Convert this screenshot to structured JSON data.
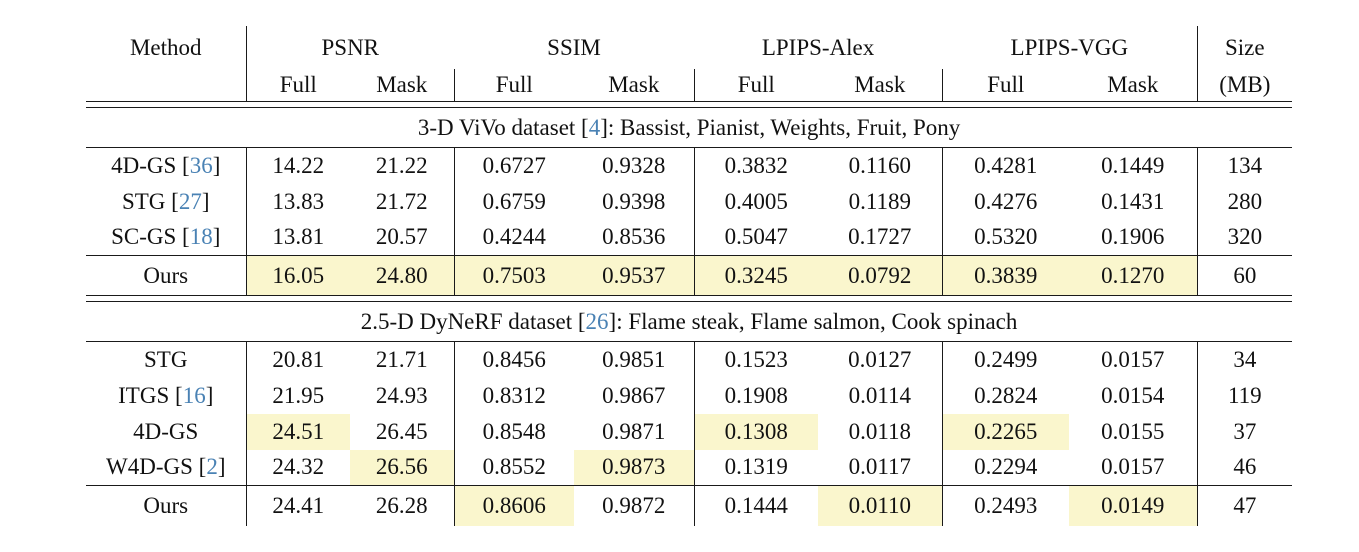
{
  "colors": {
    "highlight": "#faf6cd",
    "citation": "#4a82b4",
    "rule": "#1a1a1a"
  },
  "header": {
    "method": "Method",
    "groups": [
      {
        "label": "PSNR"
      },
      {
        "label": "SSIM"
      },
      {
        "label": "LPIPS-Alex"
      },
      {
        "label": "LPIPS-VGG"
      }
    ],
    "sub_full": "Full",
    "sub_mask": "Mask",
    "size": "Size",
    "size_unit": "(MB)"
  },
  "columns": [
    "psnr-full",
    "psnr-mask",
    "ssim-full",
    "ssim-mask",
    "lpips-alex-full",
    "lpips-alex-mask",
    "lpips-vgg-full",
    "lpips-vgg-mask",
    "size-mb"
  ],
  "sections": [
    {
      "title": {
        "prefix": "3-D ViVo dataset [",
        "cite": "4",
        "suffix": "]: Bassist, Pianist, Weights, Fruit, Pony"
      },
      "rows": [
        {
          "method": "4D-GS",
          "cite": "36",
          "values": [
            "14.22",
            "21.22",
            "0.6727",
            "0.9328",
            "0.3832",
            "0.1160",
            "0.4281",
            "0.1449",
            "134"
          ],
          "highlights": [],
          "rule_above": false
        },
        {
          "method": "STG",
          "cite": "27",
          "values": [
            "13.83",
            "21.72",
            "0.6759",
            "0.9398",
            "0.4005",
            "0.1189",
            "0.4276",
            "0.1431",
            "280"
          ],
          "highlights": [],
          "rule_above": false
        },
        {
          "method": "SC-GS",
          "cite": "18",
          "values": [
            "13.81",
            "20.57",
            "0.4244",
            "0.8536",
            "0.5047",
            "0.1727",
            "0.5320",
            "0.1906",
            "320"
          ],
          "highlights": [],
          "rule_above": false
        },
        {
          "method": "Ours",
          "cite": null,
          "values": [
            "16.05",
            "24.80",
            "0.7503",
            "0.9537",
            "0.3245",
            "0.0792",
            "0.3839",
            "0.1270",
            "60"
          ],
          "highlights": [
            0,
            1,
            2,
            3,
            4,
            5,
            6,
            7
          ],
          "rule_above": true
        }
      ]
    },
    {
      "title": {
        "prefix": "2.5-D DyNeRF dataset [",
        "cite": "26",
        "suffix": "]: Flame steak, Flame salmon, Cook spinach"
      },
      "rows": [
        {
          "method": "STG",
          "cite": null,
          "values": [
            "20.81",
            "21.71",
            "0.8456",
            "0.9851",
            "0.1523",
            "0.0127",
            "0.2499",
            "0.0157",
            "34"
          ],
          "highlights": [],
          "rule_above": false
        },
        {
          "method": "ITGS",
          "cite": "16",
          "values": [
            "21.95",
            "24.93",
            "0.8312",
            "0.9867",
            "0.1908",
            "0.0114",
            "0.2824",
            "0.0154",
            "119"
          ],
          "highlights": [],
          "rule_above": false
        },
        {
          "method": "4D-GS",
          "cite": null,
          "values": [
            "24.51",
            "26.45",
            "0.8548",
            "0.9871",
            "0.1308",
            "0.0118",
            "0.2265",
            "0.0155",
            "37"
          ],
          "highlights": [
            0,
            4,
            6
          ],
          "rule_above": false
        },
        {
          "method": "W4D-GS",
          "cite": "2",
          "values": [
            "24.32",
            "26.56",
            "0.8552",
            "0.9873",
            "0.1319",
            "0.0117",
            "0.2294",
            "0.0157",
            "46"
          ],
          "highlights": [
            1,
            3
          ],
          "rule_above": false
        },
        {
          "method": "Ours",
          "cite": null,
          "values": [
            "24.41",
            "26.28",
            "0.8606",
            "0.9872",
            "0.1444",
            "0.0110",
            "0.2493",
            "0.0149",
            "47"
          ],
          "highlights": [
            2,
            5,
            7
          ],
          "rule_above": true
        }
      ]
    }
  ],
  "chart_data": {
    "type": "table",
    "title": "Quantitative comparison on 3-D ViVo and 2.5-D DyNeRF datasets",
    "column_groups": [
      "PSNR",
      "SSIM",
      "LPIPS-Alex",
      "LPIPS-VGG",
      "Size (MB)"
    ],
    "subcolumns": [
      "Full",
      "Mask"
    ],
    "vivo_rows": [
      [
        "4D-GS [36]",
        14.22,
        21.22,
        0.6727,
        0.9328,
        0.3832,
        0.116,
        0.4281,
        0.1449,
        134
      ],
      [
        "STG [27]",
        13.83,
        21.72,
        0.6759,
        0.9398,
        0.4005,
        0.1189,
        0.4276,
        0.1431,
        280
      ],
      [
        "SC-GS [18]",
        13.81,
        20.57,
        0.4244,
        0.8536,
        0.5047,
        0.1727,
        0.532,
        0.1906,
        320
      ],
      [
        "Ours",
        16.05,
        24.8,
        0.7503,
        0.9537,
        0.3245,
        0.0792,
        0.3839,
        0.127,
        60
      ]
    ],
    "dynerf_rows": [
      [
        "STG",
        20.81,
        21.71,
        0.8456,
        0.9851,
        0.1523,
        0.0127,
        0.2499,
        0.0157,
        34
      ],
      [
        "ITGS [16]",
        21.95,
        24.93,
        0.8312,
        0.9867,
        0.1908,
        0.0114,
        0.2824,
        0.0154,
        119
      ],
      [
        "4D-GS",
        24.51,
        26.45,
        0.8548,
        0.9871,
        0.1308,
        0.0118,
        0.2265,
        0.0155,
        37
      ],
      [
        "W4D-GS [2]",
        24.32,
        26.56,
        0.8552,
        0.9873,
        0.1319,
        0.0117,
        0.2294,
        0.0157,
        46
      ],
      [
        "Ours",
        24.41,
        26.28,
        0.8606,
        0.9872,
        0.1444,
        0.011,
        0.2493,
        0.0149,
        47
      ]
    ]
  }
}
